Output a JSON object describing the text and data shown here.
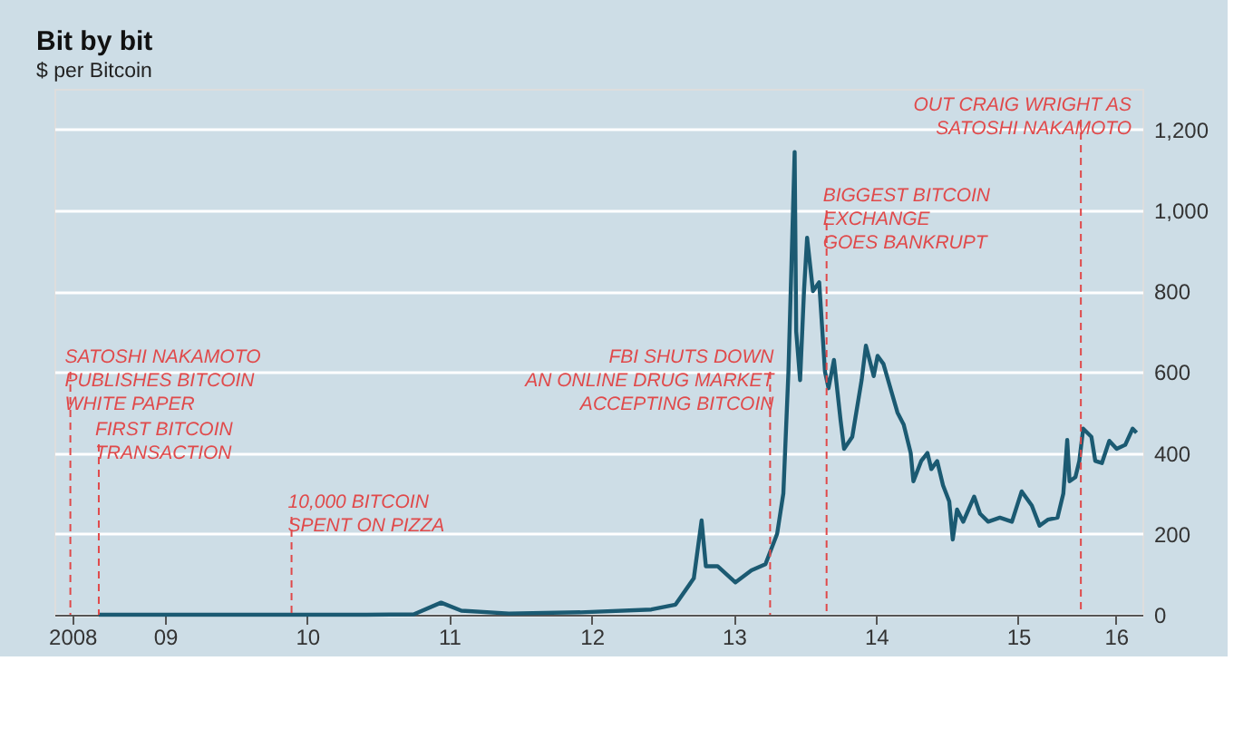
{
  "chart_data": {
    "type": "line",
    "title": "Bit by bit",
    "subtitle": "$ per Bitcoin",
    "x": [
      "2009-01-12",
      "2009-07-01",
      "2010-01-01",
      "2010-07-01",
      "2010-12-01",
      "2011-04-01",
      "2011-06-10",
      "2011-08-01",
      "2011-12-01",
      "2012-06-01",
      "2012-12-01",
      "2013-02-01",
      "2013-03-20",
      "2013-04-09",
      "2013-04-20",
      "2013-05-20",
      "2013-07-05",
      "2013-08-15",
      "2013-09-20",
      "2013-10-20",
      "2013-11-05",
      "2013-11-18",
      "2013-12-04",
      "2013-12-08",
      "2013-12-18",
      "2013-12-28",
      "2014-01-05",
      "2014-01-20",
      "2014-02-05",
      "2014-02-20",
      "2014-03-01",
      "2014-03-15",
      "2014-04-01",
      "2014-04-10",
      "2014-05-01",
      "2014-05-25",
      "2014-06-05",
      "2014-06-25",
      "2014-07-05",
      "2014-07-20",
      "2014-08-10",
      "2014-08-25",
      "2014-09-10",
      "2014-09-28",
      "2014-10-05",
      "2014-10-25",
      "2014-11-10",
      "2014-11-20",
      "2014-12-05",
      "2014-12-20",
      "2015-01-05",
      "2015-01-14",
      "2015-01-25",
      "2015-02-10",
      "2015-03-10",
      "2015-03-25",
      "2015-04-15",
      "2015-05-15",
      "2015-06-15",
      "2015-07-10",
      "2015-08-05",
      "2015-08-25",
      "2015-09-15",
      "2015-10-10",
      "2015-10-25",
      "2015-11-04",
      "2015-11-10",
      "2015-11-25",
      "2015-12-05",
      "2015-12-15",
      "2016-01-05",
      "2016-01-15",
      "2016-02-01",
      "2016-02-20",
      "2016-03-10",
      "2016-04-01",
      "2016-04-20",
      "2016-04-30"
    ],
    "series": [
      {
        "color": "#1b5a72",
        "values": [
          0,
          0,
          0,
          0,
          0,
          1,
          30,
          10,
          3,
          6,
          13,
          25,
          90,
          233,
          120,
          120,
          80,
          110,
          125,
          200,
          300,
          600,
          1144,
          700,
          580,
          800,
          932,
          800,
          822,
          600,
          560,
          630,
          480,
          410,
          440,
          580,
          665,
          590,
          640,
          620,
          550,
          500,
          470,
          400,
          330,
          380,
          400,
          360,
          380,
          320,
          280,
          186,
          260,
          230,
          292,
          250,
          230,
          240,
          230,
          305,
          270,
          220,
          235,
          240,
          300,
          432,
          330,
          340,
          380,
          460,
          440,
          380,
          375,
          430,
          410,
          420,
          460,
          450
        ]
      }
    ],
    "xlim": [
      "2008-09-20",
      "2016-05-15"
    ],
    "xticks": [
      {
        "value": "2008-11-05",
        "label": "2008"
      },
      {
        "value": "2009-07-01",
        "label": "09"
      },
      {
        "value": "2010-07-01",
        "label": "10"
      },
      {
        "value": "2011-07-01",
        "label": "11"
      },
      {
        "value": "2012-07-01",
        "label": "12"
      },
      {
        "value": "2013-07-01",
        "label": "13"
      },
      {
        "value": "2014-07-01",
        "label": "14"
      },
      {
        "value": "2015-07-01",
        "label": "15"
      },
      {
        "value": "2016-03-08",
        "label": "16"
      }
    ],
    "ylim": [
      0,
      1300
    ],
    "yticks": [
      0,
      200,
      400,
      600,
      800,
      {
        "value": 1000,
        "label": "1,000"
      },
      {
        "value": 1200,
        "label": "1,200"
      }
    ],
    "grid": "y",
    "ref_lines": [
      {
        "axis": "x",
        "value": "2008-10-31",
        "label": "SATOSHI NAKAMOTO\nPUBLISHES BITCOIN\nWHITE PAPER",
        "color": "#e0494a",
        "line_style": "dashed"
      },
      {
        "axis": "x",
        "value": "2009-01-12",
        "label": "FIRST BITCOIN\nTRANSACTION",
        "color": "#e0494a",
        "line_style": "dashed"
      },
      {
        "axis": "x",
        "value": "2010-05-22",
        "label": "10,000 BITCOIN\nSPENT ON PIZZA",
        "color": "#e0494a",
        "line_style": "dashed"
      },
      {
        "axis": "x",
        "value": "2013-10-02",
        "label": "FBI SHUTS DOWN\nAN ONLINE DRUG MARKET\nACCEPTING BITCOIN",
        "color": "#e0494a",
        "line_style": "dashed"
      },
      {
        "axis": "x",
        "value": "2014-02-24",
        "label": "BIGGEST BITCOIN\nEXCHANGE\nGOES BANKRUPT",
        "color": "#e0494a",
        "line_style": "dashed"
      },
      {
        "axis": "x",
        "value": "2015-12-09",
        "label": "OUT CRAIG WRIGHT AS\nSATOSHI NAKAMOTO",
        "color": "#e0494a",
        "line_style": "dashed"
      }
    ]
  }
}
